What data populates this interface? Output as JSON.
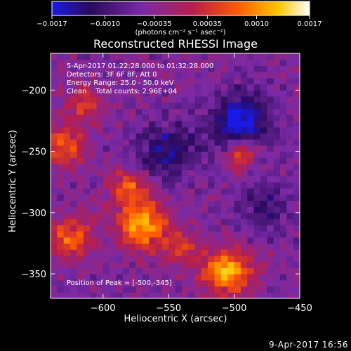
{
  "chart_data": {
    "type": "heatmap",
    "title": "Reconstructed RHESSI Image",
    "xlabel": "Heliocentric X (arcsec)",
    "ylabel": "Heliocentric Y (arcsec)",
    "xlim": [
      -640,
      -450
    ],
    "ylim": [
      -370,
      -170
    ],
    "x_ticks": [
      -600,
      -550,
      -500,
      -450
    ],
    "y_ticks": [
      -200,
      -250,
      -300,
      -350
    ],
    "x_tick_labels": [
      "−600",
      "−550",
      "−500",
      "−450"
    ],
    "y_tick_labels": [
      "−200",
      "−250",
      "−300",
      "−350"
    ],
    "colorbar": {
      "min": -0.0017,
      "max": 0.0017,
      "ticks": [
        -0.0017,
        -0.001,
        -0.00035,
        0.00035,
        0.001,
        0.0017
      ],
      "tick_labels": [
        "−0.0017",
        "−0.0010",
        "−0.00035",
        "0.00035",
        "0.0010",
        "0.0017"
      ],
      "unit_label": "(photons cm⁻² s⁻¹ asec⁻²)",
      "colors": [
        "#1a1ae6",
        "#2a0a5a",
        "#7a2aa6",
        "#b81e4a",
        "#ff5a00",
        "#ffc800",
        "#ffffff"
      ]
    },
    "annotations": [
      "5-Apr-2017 01:22:28.000 to 01:32:28.000",
      "Detectors: 3F 6F 8F, Att 0",
      "Energy Range: 25.0 - 50.0 keV",
      "Clean    Total counts: 2.96E+04"
    ],
    "peak_label": "Position of Peak = [-500,-345]",
    "sources": [
      {
        "x": -505,
        "y": -348,
        "amplitude": 0.0017,
        "sigma": 13
      },
      {
        "x": -570,
        "y": -310,
        "amplitude": 0.0016,
        "sigma": 14
      },
      {
        "x": -580,
        "y": -280,
        "amplitude": 0.0011,
        "sigma": 10
      },
      {
        "x": -495,
        "y": -252,
        "amplitude": 0.00125,
        "sigma": 8
      },
      {
        "x": -630,
        "y": -245,
        "amplitude": 0.0011,
        "sigma": 12
      },
      {
        "x": -625,
        "y": -320,
        "amplitude": 0.0012,
        "sigma": 12
      },
      {
        "x": -615,
        "y": -210,
        "amplitude": 0.0009,
        "sigma": 10
      },
      {
        "x": -540,
        "y": -330,
        "amplitude": 0.0008,
        "sigma": 10
      },
      {
        "x": -495,
        "y": -225,
        "amplitude": -0.0013,
        "sigma": 16
      },
      {
        "x": -550,
        "y": -250,
        "amplitude": -0.0009,
        "sigma": 16
      },
      {
        "x": -475,
        "y": -295,
        "amplitude": -0.0006,
        "sigma": 14
      }
    ],
    "background": -0.00045
  },
  "footer_date": "9-Apr-2017 16:56"
}
